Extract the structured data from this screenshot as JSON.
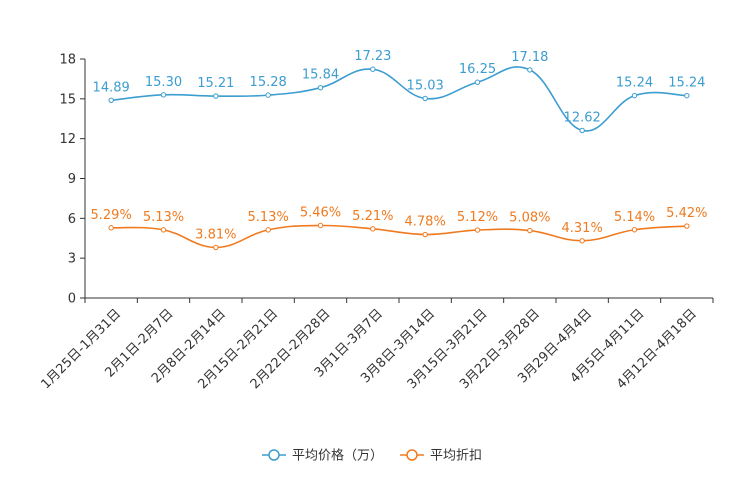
{
  "chart_data": {
    "type": "line",
    "title": "",
    "xlabel": "",
    "ylabel": "",
    "ylim": [
      0,
      18
    ],
    "yticks": [
      0,
      3,
      6,
      9,
      12,
      15,
      18
    ],
    "legend_position": "bottom-center",
    "grid": false,
    "categories": [
      "1月25日-1月31日",
      "2月1日-2月7日",
      "2月8日-2月14日",
      "2月15日-2月21日",
      "2月22日-2月28日",
      "3月1日-3月7日",
      "3月8日-3月14日",
      "3月15日-3月21日",
      "3月22日-3月28日",
      "3月29日-4月4日",
      "4月5日-4月11日",
      "4月12日-4月18日"
    ],
    "series": [
      {
        "name": "平均价格（万）",
        "color": "#3c9dd0",
        "values": [
          14.89,
          15.3,
          15.21,
          15.28,
          15.84,
          17.23,
          15.03,
          16.25,
          17.18,
          12.62,
          15.24,
          15.24
        ],
        "labels": [
          "14.89",
          "15.30",
          "15.21",
          "15.28",
          "15.84",
          "17.23",
          "15.03",
          "16.25",
          "17.18",
          "12.62",
          "15.24",
          "15.24"
        ]
      },
      {
        "name": "平均折扣",
        "color": "#f07a1f",
        "values": [
          5.29,
          5.13,
          3.81,
          5.13,
          5.46,
          5.21,
          4.78,
          5.12,
          5.08,
          4.31,
          5.14,
          5.42
        ],
        "labels": [
          "5.29%",
          "5.13%",
          "3.81%",
          "5.13%",
          "5.46%",
          "5.21%",
          "4.78%",
          "5.12%",
          "5.08%",
          "4.31%",
          "5.14%",
          "5.42%"
        ]
      }
    ]
  }
}
